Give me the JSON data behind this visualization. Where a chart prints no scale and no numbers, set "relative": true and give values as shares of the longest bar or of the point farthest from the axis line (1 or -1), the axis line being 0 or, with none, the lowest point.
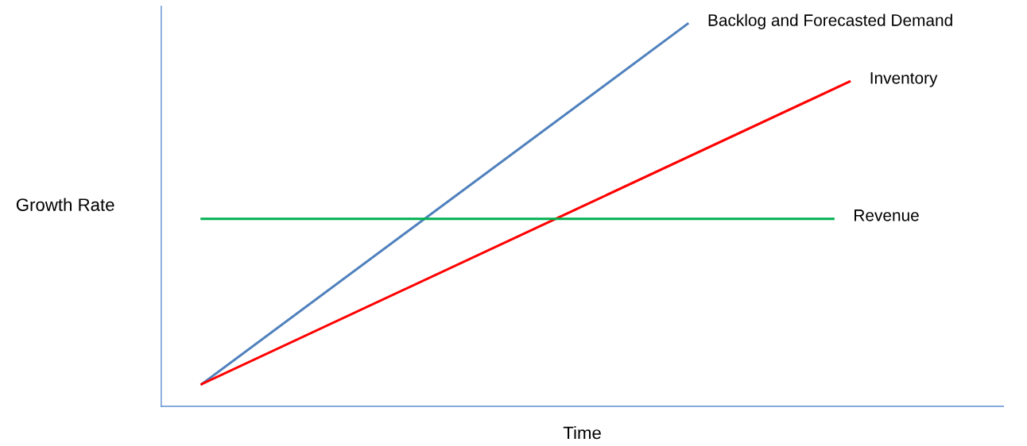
{
  "chart_data": {
    "type": "line",
    "relative": true,
    "xlabel": "Time",
    "ylabel": "Growth Rate",
    "categories": [
      null,
      null,
      null,
      null,
      null,
      null,
      null,
      null,
      null,
      null,
      null,
      null,
      null,
      null,
      null,
      null,
      null,
      null,
      null,
      null,
      null,
      null,
      null,
      null,
      null,
      null,
      null,
      null,
      null,
      null,
      null,
      null,
      null,
      null,
      null,
      null,
      null,
      null,
      null,
      null,
      null,
      null,
      null,
      null,
      null,
      null,
      null,
      null,
      null,
      null,
      null,
      null
    ],
    "tick_labels": false,
    "legend": false,
    "marker": "none",
    "line_style": "solid",
    "series": [
      {
        "name": "Backlog and Forecasted Demand",
        "color": "#4f81bd",
        "values": [
          null,
          null,
          0.058,
          null,
          null,
          null,
          null,
          null,
          null,
          null,
          null,
          null,
          null,
          null,
          null,
          null,
          null,
          null,
          null,
          null,
          null,
          null,
          null,
          null,
          null,
          null,
          null,
          null,
          null,
          null,
          null,
          null,
          1.0,
          null,
          null,
          null,
          null,
          null,
          null,
          null,
          null,
          null,
          null,
          null,
          null,
          null,
          null,
          null,
          null,
          null,
          null,
          null
        ]
      },
      {
        "name": "Inventory",
        "color": "#ff0000",
        "values": [
          null,
          null,
          0.058,
          null,
          null,
          null,
          null,
          null,
          null,
          null,
          null,
          null,
          null,
          null,
          null,
          null,
          null,
          null,
          null,
          null,
          null,
          null,
          null,
          null,
          null,
          null,
          null,
          null,
          null,
          null,
          null,
          null,
          null,
          null,
          null,
          null,
          null,
          null,
          null,
          null,
          null,
          null,
          0.849,
          null,
          null,
          null,
          null,
          null,
          null,
          null,
          null,
          null
        ]
      },
      {
        "name": "Revenue",
        "color": "#00b050",
        "values": [
          null,
          null,
          0.49,
          null,
          null,
          null,
          null,
          null,
          null,
          null,
          null,
          null,
          null,
          null,
          null,
          null,
          null,
          null,
          null,
          null,
          null,
          null,
          null,
          null,
          null,
          null,
          null,
          null,
          null,
          null,
          null,
          null,
          null,
          null,
          null,
          null,
          null,
          null,
          null,
          null,
          null,
          0.49,
          null,
          null,
          null,
          null,
          null,
          null,
          null,
          null,
          null,
          null
        ]
      }
    ]
  }
}
